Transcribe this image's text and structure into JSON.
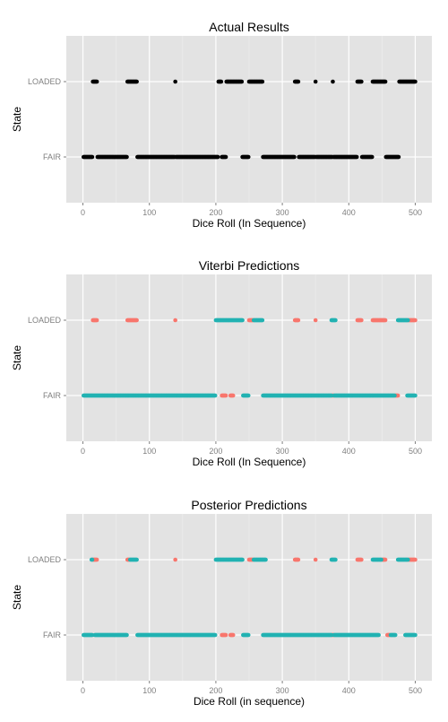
{
  "colors": {
    "panel_bg": "#e3e3e3",
    "grid_major": "#ffffff",
    "grid_minor": "#ececec",
    "point_default": "#000000",
    "fair": "#f8766d",
    "loaded": "#22b2b2",
    "tick_label": "#7f7f7f"
  },
  "chart_data": [
    {
      "type": "scatter",
      "title": "Actual Results",
      "xlabel": "Dice Roll (In Sequence)",
      "ylabel": "State",
      "xlim": [
        -25,
        525
      ],
      "xticks": [
        0,
        100,
        200,
        300,
        400,
        500
      ],
      "categories": [
        "FAIR",
        "LOADED"
      ],
      "grid": true,
      "legend": "none",
      "series": [
        {
          "category": "LOADED",
          "color": "point_default",
          "runs": [
            [
              15,
              21
            ],
            [
              67,
              81
            ],
            [
              139,
              139
            ],
            [
              204,
              208
            ],
            [
              216,
              239
            ],
            [
              250,
              270
            ],
            [
              319,
              324
            ],
            [
              350,
              350
            ],
            [
              376,
              376
            ],
            [
              413,
              419
            ],
            [
              436,
              455
            ],
            [
              476,
              500
            ]
          ]
        },
        {
          "category": "FAIR",
          "color": "point_default",
          "runs": [
            [
              1,
              14
            ],
            [
              22,
              66
            ],
            [
              82,
              138
            ],
            [
              140,
              203
            ],
            [
              209,
              215
            ],
            [
              240,
              249
            ],
            [
              271,
              318
            ],
            [
              325,
              349
            ],
            [
              351,
              375
            ],
            [
              377,
              412
            ],
            [
              420,
              435
            ],
            [
              456,
              475
            ]
          ]
        }
      ]
    },
    {
      "type": "scatter",
      "title": "Viterbi Predictions",
      "xlabel": "Dice Roll (In Sequence)",
      "ylabel": "State",
      "xlim": [
        -25,
        525
      ],
      "xticks": [
        0,
        100,
        200,
        300,
        400,
        500
      ],
      "categories": [
        "FAIR",
        "LOADED"
      ],
      "grid": true,
      "legend": "none",
      "series": [
        {
          "category": "LOADED",
          "color": "fair",
          "runs": [
            [
              15,
              21
            ],
            [
              67,
              81
            ],
            [
              139,
              139
            ],
            [
              250,
              256
            ],
            [
              319,
              324
            ],
            [
              350,
              350
            ],
            [
              413,
              419
            ],
            [
              436,
              455
            ],
            [
              490,
              500
            ]
          ]
        },
        {
          "category": "LOADED",
          "color": "loaded",
          "runs": [
            [
              200,
              240
            ],
            [
              257,
              270
            ],
            [
              374,
              380
            ],
            [
              474,
              489
            ]
          ]
        },
        {
          "category": "FAIR",
          "color": "fair",
          "runs": [
            [
              209,
              215
            ],
            [
              222,
              226
            ],
            [
              375,
              377
            ],
            [
              470,
              474
            ]
          ]
        },
        {
          "category": "FAIR",
          "color": "loaded",
          "runs": [
            [
              1,
              199
            ],
            [
              241,
              249
            ],
            [
              271,
              374
            ],
            [
              378,
              469
            ],
            [
              488,
              500
            ]
          ]
        }
      ]
    },
    {
      "type": "scatter",
      "title": "Posterior Predictions",
      "xlabel": "Dice Roll (in sequence)",
      "ylabel": "State",
      "xlim": [
        -25,
        525
      ],
      "xticks": [
        0,
        100,
        200,
        300,
        400,
        500
      ],
      "categories": [
        "FAIR",
        "LOADED"
      ],
      "grid": true,
      "legend": "none",
      "series": [
        {
          "category": "LOADED",
          "color": "fair",
          "runs": [
            [
              15,
              21
            ],
            [
              67,
              70
            ],
            [
              139,
              139
            ],
            [
              250,
              256
            ],
            [
              319,
              324
            ],
            [
              350,
              350
            ],
            [
              413,
              419
            ],
            [
              450,
              455
            ],
            [
              490,
              500
            ]
          ]
        },
        {
          "category": "LOADED",
          "color": "loaded",
          "runs": [
            [
              13,
              14
            ],
            [
              71,
              81
            ],
            [
              200,
              240
            ],
            [
              257,
              275
            ],
            [
              374,
              380
            ],
            [
              436,
              449
            ],
            [
              474,
              489
            ]
          ]
        },
        {
          "category": "FAIR",
          "color": "fair",
          "runs": [
            [
              209,
              215
            ],
            [
              222,
              226
            ],
            [
              375,
              377
            ],
            [
              458,
              462
            ]
          ]
        },
        {
          "category": "FAIR",
          "color": "loaded",
          "runs": [
            [
              1,
              14
            ],
            [
              18,
              66
            ],
            [
              82,
              199
            ],
            [
              241,
              249
            ],
            [
              271,
              374
            ],
            [
              378,
              445
            ],
            [
              463,
              470
            ],
            [
              485,
              500
            ]
          ]
        }
      ]
    }
  ]
}
